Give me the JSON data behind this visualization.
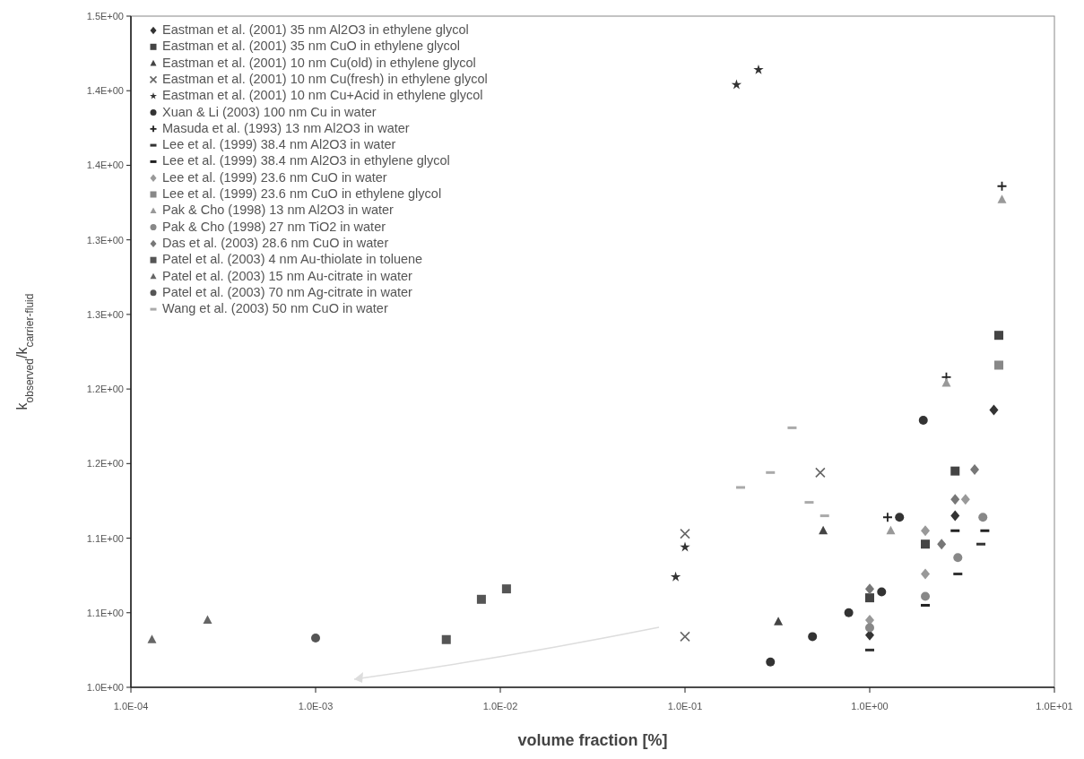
{
  "chart_data": {
    "type": "scatter",
    "xlabel": "volume fraction [%]",
    "ylabel": "k$_{observed}$/k$_{carrier-fluid}$",
    "log": "x",
    "xlim": [
      0.0001,
      10
    ],
    "xticks": [
      {
        "value": 0.0001,
        "label": "1.0E-04"
      },
      {
        "value": 0.001,
        "label": "1.0E-03"
      },
      {
        "value": 0.01,
        "label": "1.0E-02"
      },
      {
        "value": 0.1,
        "label": "1.0E-01"
      },
      {
        "value": 1,
        "label": "1.0E+00"
      },
      {
        "value": 10,
        "label": "1.0E+01"
      }
    ],
    "ylim": [
      1,
      1.45
    ],
    "yticks": [
      {
        "value": 1,
        "label": "1.0E+00"
      },
      {
        "value": 1.05,
        "label": "1.1E+00"
      },
      {
        "value": 1.1,
        "label": "1.1E+00"
      },
      {
        "value": 1.15,
        "label": "1.2E+00"
      },
      {
        "value": 1.2,
        "label": "1.2E+00"
      },
      {
        "value": 1.25,
        "label": "1.3E+00"
      },
      {
        "value": 1.3,
        "label": "1.3E+00"
      },
      {
        "value": 1.35,
        "label": "1.4E+00"
      },
      {
        "value": 1.4,
        "label": "1.4E+00"
      },
      {
        "value": 1.45,
        "label": "1.5E+00"
      }
    ],
    "grid": false,
    "legend": "top left",
    "series": [
      {
        "name": "Eastman et al. (2001) 35 nm Al2O3 in ethylene glycol",
        "color": "#333333",
        "marker": "diamond",
        "x": [
          1.0,
          2.9,
          4.7
        ],
        "values": [
          1.035,
          1.115,
          1.186
        ]
      },
      {
        "name": "Eastman et al. (2001) 35 nm CuO in ethylene glycol",
        "color": "#444444",
        "marker": "square",
        "x": [
          1.0,
          2.0,
          2.9,
          5.0
        ],
        "values": [
          1.06,
          1.096,
          1.145,
          1.236
        ]
      },
      {
        "name": "Eastman et al. (2001) 10 nm Cu(old) in ethylene glycol",
        "color": "#444444",
        "marker": "triangle",
        "x": [
          0.32,
          0.56
        ],
        "values": [
          1.044,
          1.105
        ]
      },
      {
        "name": "Eastman et al. (2001) 10 nm Cu(fresh) in ethylene glycol",
        "color": "#666666",
        "marker": "cross",
        "x": [
          0.1,
          0.1,
          0.54
        ],
        "values": [
          1.034,
          1.103,
          1.144
        ]
      },
      {
        "name": "Eastman et al. (2001) 10 nm Cu+Acid in ethylene glycol",
        "color": "#333333",
        "marker": "star",
        "x": [
          0.089,
          0.1,
          0.19,
          0.25
        ],
        "values": [
          1.074,
          1.094,
          1.404,
          1.414
        ]
      },
      {
        "name": "Xuan & Li (2003) 100 nm Cu in water",
        "color": "#333333",
        "marker": "circle",
        "x": [
          0.29,
          0.49,
          0.77,
          1.16,
          1.45,
          1.95
        ],
        "values": [
          1.017,
          1.034,
          1.05,
          1.064,
          1.114,
          1.179
        ]
      },
      {
        "name": "Masuda et al. (1993) 13 nm Al2O3 in water",
        "color": "#222222",
        "marker": "plus",
        "x": [
          1.25,
          2.6,
          5.2
        ],
        "values": [
          1.114,
          1.208,
          1.336
        ]
      },
      {
        "name": "Lee et al. (1999) 38.4 nm Al2O3 in water",
        "color": "#333333",
        "x": [
          1.0,
          3.0,
          4.0
        ],
        "values": [
          1.025,
          1.076,
          1.096
        ]
      },
      {
        "name": "Lee et al. (1999) 38.4 nm Al2O3 in ethylene glycol",
        "color": "#222222",
        "x": [
          2.0,
          2.9,
          4.2
        ],
        "values": [
          1.055,
          1.105,
          1.105
        ]
      },
      {
        "name": "Lee et al. (1999) 23.6 nm CuO in water",
        "color": "#999999",
        "marker": "diamond",
        "x": [
          1.0,
          2.0,
          2.0,
          3.3
        ],
        "values": [
          1.045,
          1.076,
          1.105,
          1.126
        ]
      },
      {
        "name": "Lee et al. (1999) 23.6 nm CuO in ethylene glycol",
        "color": "#888888",
        "marker": "square",
        "x": [
          5.0
        ],
        "values": [
          1.216
        ]
      },
      {
        "name": "Pak & Cho (1998) 13 nm Al2O3 in water",
        "color": "#999999",
        "marker": "triangle",
        "x": [
          1.3,
          2.6,
          5.2
        ],
        "values": [
          1.105,
          1.204,
          1.327
        ]
      },
      {
        "name": "Pak & Cho (1998) 27 nm TiO2 in water",
        "color": "#888888",
        "marker": "circle",
        "x": [
          1.0,
          2.0,
          3.0,
          4.1
        ],
        "values": [
          1.04,
          1.061,
          1.087,
          1.114
        ]
      },
      {
        "name": "Das et al. (2003) 28.6 nm CuO in water",
        "color": "#777777",
        "marker": "diamond",
        "x": [
          1.0,
          2.45,
          2.9,
          3.7
        ],
        "values": [
          1.066,
          1.096,
          1.126,
          1.146
        ]
      },
      {
        "name": "Patel et al. (2003) 4 nm Au-thiolate in toluene",
        "color": "#555555",
        "marker": "square",
        "x": [
          0.0051,
          0.0079,
          0.0108
        ],
        "values": [
          1.032,
          1.059,
          1.066
        ]
      },
      {
        "name": "Patel et al. (2003) 15 nm Au-citrate in water",
        "color": "#666666",
        "marker": "triangle",
        "x": [
          0.00013,
          0.00026
        ],
        "values": [
          1.032,
          1.045
        ]
      },
      {
        "name": "Patel et al. (2003) 70 nm Ag-citrate in water",
        "color": "#555555",
        "marker": "circle",
        "x": [
          0.001
        ],
        "values": [
          1.033
        ]
      },
      {
        "name": "Wang et al. (2003) 50 nm CuO in water",
        "color": "#aaaaaa",
        "x": [
          0.2,
          0.29,
          0.38,
          0.47,
          0.57
        ],
        "values": [
          1.134,
          1.144,
          1.174,
          1.124,
          1.115
        ]
      }
    ]
  }
}
